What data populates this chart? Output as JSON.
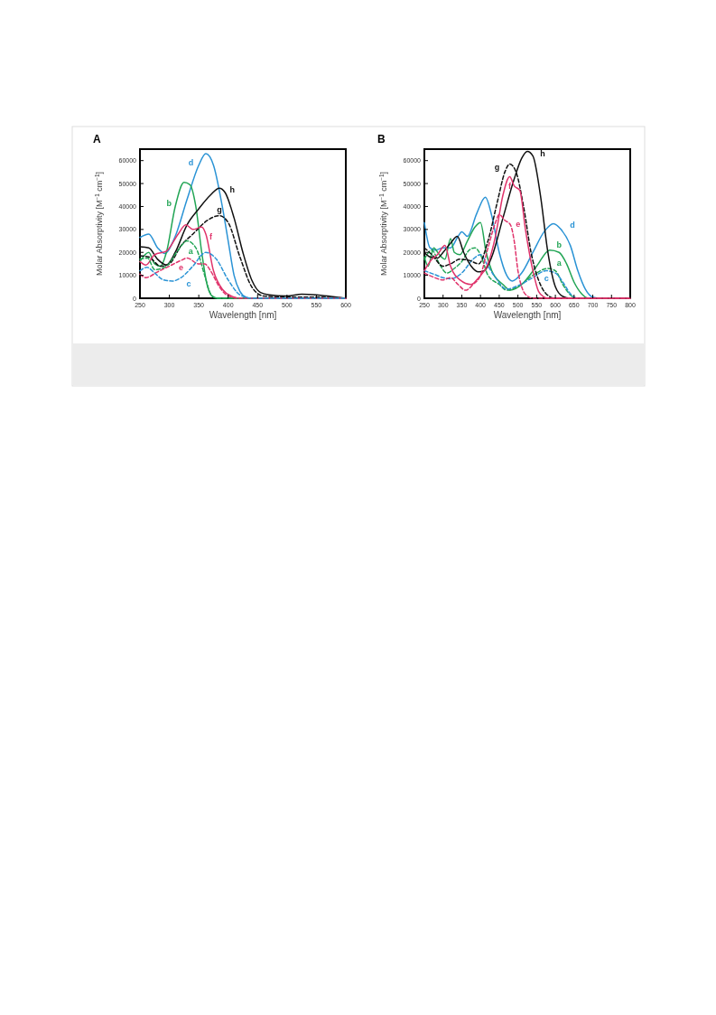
{
  "chart_data": [
    {
      "type": "line",
      "title": "A",
      "xlabel": "Wavelength [nm]",
      "ylabel": "Molar Absorptivity [M$^{−1}$ cm$^{−1}$]",
      "xlim": [
        250,
        600
      ],
      "ylim": [
        0,
        65000
      ],
      "xticks": [
        250,
        300,
        350,
        400,
        450,
        500,
        550,
        600
      ],
      "yticks": [
        0,
        10000,
        20000,
        30000,
        40000,
        50000,
        60000
      ],
      "grid": false,
      "legend": false,
      "series": [
        {
          "name": "d",
          "color": "#2a93d5",
          "line_style": "solid",
          "x": [
            250,
            265,
            280,
            292,
            310,
            330,
            350,
            362,
            375,
            390,
            400,
            410,
            420,
            430,
            440,
            600
          ],
          "values": [
            26500,
            28000,
            22000,
            19500,
            27000,
            43000,
            58000,
            63000,
            58000,
            40000,
            25000,
            10000,
            3000,
            500,
            0,
            0
          ]
        },
        {
          "name": "b",
          "color": "#22a555",
          "line_style": "solid",
          "x": [
            250,
            265,
            275,
            285,
            295,
            310,
            325,
            335,
            345,
            355,
            365,
            375,
            385,
            600
          ],
          "values": [
            16000,
            20000,
            15000,
            14000,
            20000,
            40000,
            50500,
            49500,
            40000,
            20000,
            5000,
            500,
            0,
            0
          ]
        },
        {
          "name": "h",
          "color": "#111111",
          "line_style": "solid",
          "x": [
            250,
            265,
            280,
            295,
            310,
            330,
            350,
            370,
            385,
            395,
            410,
            425,
            440,
            455,
            470,
            500,
            525,
            550,
            575,
            600
          ],
          "values": [
            22500,
            22000,
            17000,
            14500,
            20000,
            32000,
            39000,
            45000,
            48000,
            46000,
            35000,
            20000,
            8000,
            2500,
            1500,
            1000,
            1800,
            1500,
            800,
            0
          ]
        },
        {
          "name": "g",
          "color": "#111111",
          "line_style": "dashed",
          "x": [
            250,
            265,
            285,
            300,
            320,
            340,
            365,
            385,
            400,
            420,
            440,
            460,
            500,
            550,
            600
          ],
          "values": [
            18500,
            18000,
            14000,
            15000,
            23000,
            28000,
            34000,
            36000,
            33000,
            18000,
            5000,
            1000,
            500,
            500,
            0
          ]
        },
        {
          "name": "f",
          "color": "#e0336b",
          "line_style": "solid",
          "x": [
            250,
            260,
            275,
            295,
            315,
            328,
            340,
            355,
            362,
            375,
            390,
            410,
            420,
            600
          ],
          "values": [
            16000,
            14500,
            19000,
            20500,
            28000,
            32000,
            30000,
            31000,
            28000,
            12000,
            4000,
            500,
            0,
            0
          ]
        },
        {
          "name": "a",
          "color": "#22a555",
          "line_style": "dashed",
          "x": [
            250,
            263,
            275,
            295,
            315,
            330,
            345,
            360,
            370,
            380,
            600
          ],
          "values": [
            17000,
            17500,
            12500,
            14000,
            21000,
            25000,
            22000,
            10000,
            2000,
            0,
            0
          ]
        },
        {
          "name": "e",
          "color": "#e0336b",
          "line_style": "dashed",
          "x": [
            250,
            260,
            280,
            300,
            320,
            330,
            350,
            360,
            370,
            385,
            400,
            420,
            600
          ],
          "values": [
            10500,
            9000,
            11500,
            14000,
            16500,
            17500,
            15000,
            15000,
            12000,
            5000,
            1000,
            0,
            0
          ]
        },
        {
          "name": "c",
          "color": "#2a93d5",
          "line_style": "dashed",
          "x": [
            250,
            262,
            275,
            290,
            305,
            320,
            340,
            362,
            380,
            400,
            420,
            440,
            600
          ],
          "values": [
            12000,
            13500,
            11000,
            8000,
            7500,
            9000,
            14000,
            20000,
            17000,
            8000,
            1500,
            0,
            0
          ]
        }
      ]
    },
    {
      "type": "line",
      "title": "B",
      "xlabel": "Wavelength [nm]",
      "ylabel": "Molar Absorptivity [M$^{−1}$ cm$^{−1}$]",
      "xlim": [
        250,
        800
      ],
      "ylim": [
        0,
        65000
      ],
      "xticks": [
        250,
        300,
        350,
        400,
        450,
        500,
        550,
        600,
        650,
        700,
        750,
        800
      ],
      "yticks": [
        0,
        10000,
        20000,
        30000,
        40000,
        50000,
        60000
      ],
      "grid": false,
      "legend": false,
      "series": [
        {
          "name": "d",
          "color": "#2a93d5",
          "line_style": "solid",
          "x": [
            250,
            265,
            280,
            300,
            320,
            340,
            350,
            365,
            390,
            413,
            430,
            450,
            470,
            485,
            510,
            540,
            570,
            595,
            615,
            640,
            660,
            680,
            700,
            720,
            800
          ],
          "values": [
            33000,
            22000,
            21000,
            22000,
            22000,
            27000,
            29000,
            27000,
            37000,
            44000,
            36000,
            20000,
            10000,
            7500,
            11000,
            20000,
            29000,
            32500,
            30000,
            23000,
            12000,
            4000,
            500,
            0,
            0
          ]
        },
        {
          "name": "b",
          "color": "#22a555",
          "line_style": "solid",
          "x": [
            250,
            260,
            275,
            290,
            305,
            320,
            330,
            345,
            365,
            385,
            400,
            415,
            430,
            460,
            480,
            510,
            550,
            585,
            610,
            630,
            650,
            670,
            690,
            800
          ],
          "values": [
            18000,
            14000,
            22000,
            19000,
            17000,
            26000,
            20000,
            19000,
            25000,
            31000,
            33000,
            20000,
            12000,
            6000,
            3500,
            6000,
            14000,
            21000,
            20000,
            15000,
            7000,
            2000,
            0,
            0
          ]
        },
        {
          "name": "a",
          "color": "#22a555",
          "line_style": "dashed",
          "x": [
            250,
            270,
            290,
            310,
            330,
            350,
            370,
            385,
            400,
            420,
            450,
            470,
            500,
            540,
            580,
            600,
            620,
            640,
            660,
            800
          ],
          "values": [
            17000,
            21000,
            15000,
            11000,
            13000,
            16000,
            21000,
            22000,
            19000,
            10000,
            6000,
            3500,
            5000,
            10000,
            13000,
            12000,
            6000,
            1500,
            0,
            0
          ]
        },
        {
          "name": "c",
          "color": "#2a93d5",
          "line_style": "dashed",
          "x": [
            250,
            275,
            300,
            320,
            350,
            380,
            400,
            420,
            440,
            470,
            500,
            540,
            575,
            600,
            620,
            640,
            660,
            800
          ],
          "values": [
            12000,
            10500,
            9000,
            8500,
            11000,
            17000,
            19000,
            14000,
            9000,
            4000,
            5500,
            9000,
            12000,
            11000,
            7000,
            2000,
            0,
            0
          ]
        },
        {
          "name": "h",
          "color": "#111111",
          "line_style": "solid",
          "x": [
            250,
            265,
            285,
            300,
            320,
            338,
            355,
            375,
            395,
            410,
            430,
            460,
            490,
            510,
            525,
            540,
            560,
            580,
            600,
            620,
            640,
            800
          ],
          "values": [
            20000,
            18000,
            17500,
            20000,
            24000,
            27000,
            20000,
            14000,
            11500,
            12000,
            18000,
            35000,
            52000,
            61000,
            64000,
            62000,
            45000,
            20000,
            5000,
            800,
            0,
            0
          ]
        },
        {
          "name": "g",
          "color": "#111111",
          "line_style": "dashed",
          "x": [
            250,
            270,
            300,
            320,
            345,
            370,
            395,
            420,
            445,
            465,
            478,
            495,
            515,
            535,
            555,
            575,
            600,
            800
          ],
          "values": [
            22000,
            19000,
            14000,
            15000,
            17000,
            16500,
            15000,
            25000,
            42000,
            55000,
            58500,
            55000,
            40000,
            20000,
            8000,
            2000,
            0,
            0
          ]
        },
        {
          "name": "f",
          "color": "#e0336b",
          "line_style": "solid",
          "x": [
            250,
            270,
            285,
            305,
            320,
            345,
            375,
            395,
            420,
            440,
            460,
            478,
            490,
            505,
            520,
            540,
            555,
            570,
            580,
            800
          ],
          "values": [
            12000,
            17000,
            19000,
            23000,
            14000,
            8000,
            6000,
            9000,
            15000,
            27000,
            45000,
            53000,
            49000,
            47000,
            30000,
            12000,
            3000,
            500,
            0,
            0
          ]
        },
        {
          "name": "e",
          "color": "#e0336b",
          "line_style": "dashed",
          "x": [
            250,
            270,
            300,
            320,
            340,
            360,
            380,
            400,
            420,
            440,
            450,
            465,
            480,
            490,
            500,
            510,
            525,
            540,
            800
          ],
          "values": [
            11000,
            9500,
            8000,
            9000,
            6000,
            3500,
            6000,
            10000,
            22000,
            33000,
            36500,
            34000,
            32000,
            25000,
            12000,
            5000,
            1000,
            0,
            0
          ]
        }
      ]
    }
  ]
}
